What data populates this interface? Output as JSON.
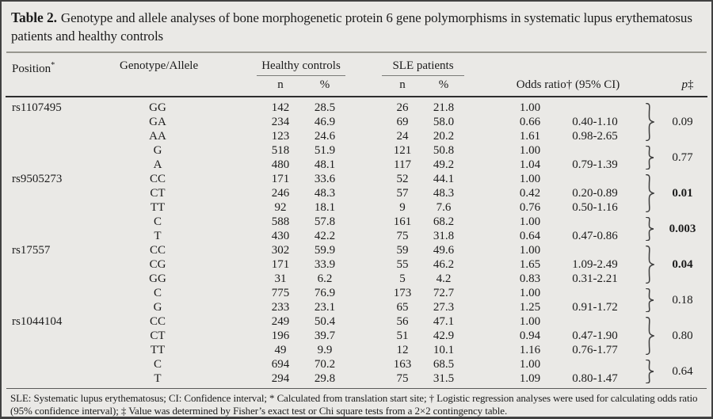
{
  "colors": {
    "background": "#eae9e6",
    "border": "#414141",
    "text": "#1b1b1b",
    "title_rule": "#98978f",
    "header_rule": "#2e2e2e"
  },
  "title": {
    "label": "Table 2.",
    "text": "Genotype and allele analyses of bone morphogenetic protein 6 gene polymorphisms in systematic lupus erythematosus patients and healthy controls"
  },
  "header": {
    "position": "Position",
    "position_sup": "*",
    "genotype_allele": "Genotype/Allele",
    "healthy_controls": "Healthy controls",
    "sle_patients": "SLE patients",
    "n": "n",
    "pct": "%",
    "odds_ratio": "Odds ratio† (95% CI)",
    "p": "p",
    "p_sup": "‡"
  },
  "table": {
    "groups": [
      {
        "position": "rs1107495",
        "rows": [
          {
            "ga": "GG",
            "hc_n": "142",
            "hc_pct": "28.5",
            "sle_n": "26",
            "sle_pct": "21.8",
            "or": "1.00",
            "ci": ""
          },
          {
            "ga": "GA",
            "hc_n": "234",
            "hc_pct": "46.9",
            "sle_n": "69",
            "sle_pct": "58.0",
            "or": "0.66",
            "ci": "0.40-1.10"
          },
          {
            "ga": "AA",
            "hc_n": "123",
            "hc_pct": "24.6",
            "sle_n": "24",
            "sle_pct": "20.2",
            "or": "1.61",
            "ci": "0.98-2.65"
          },
          {
            "ga": "G",
            "hc_n": "518",
            "hc_pct": "51.9",
            "sle_n": "121",
            "sle_pct": "50.8",
            "or": "1.00",
            "ci": ""
          },
          {
            "ga": "A",
            "hc_n": "480",
            "hc_pct": "48.1",
            "sle_n": "117",
            "sle_pct": "49.2",
            "or": "1.04",
            "ci": "0.79-1.39"
          }
        ],
        "p_blocks": [
          {
            "span": 3,
            "p": "0.09",
            "bold": false
          },
          {
            "span": 2,
            "p": "0.77",
            "bold": false
          }
        ]
      },
      {
        "position": "rs9505273",
        "rows": [
          {
            "ga": "CC",
            "hc_n": "171",
            "hc_pct": "33.6",
            "sle_n": "52",
            "sle_pct": "44.1",
            "or": "1.00",
            "ci": ""
          },
          {
            "ga": "CT",
            "hc_n": "246",
            "hc_pct": "48.3",
            "sle_n": "57",
            "sle_pct": "48.3",
            "or": "0.42",
            "ci": "0.20-0.89"
          },
          {
            "ga": "TT",
            "hc_n": "92",
            "hc_pct": "18.1",
            "sle_n": "9",
            "sle_pct": "7.6",
            "or": "0.76",
            "ci": "0.50-1.16"
          },
          {
            "ga": "C",
            "hc_n": "588",
            "hc_pct": "57.8",
            "sle_n": "161",
            "sle_pct": "68.2",
            "or": "1.00",
            "ci": ""
          },
          {
            "ga": "T",
            "hc_n": "430",
            "hc_pct": "42.2",
            "sle_n": "75",
            "sle_pct": "31.8",
            "or": "0.64",
            "ci": "0.47-0.86"
          }
        ],
        "p_blocks": [
          {
            "span": 3,
            "p": "0.01",
            "bold": true
          },
          {
            "span": 2,
            "p": "0.003",
            "bold": true
          }
        ]
      },
      {
        "position": "rs17557",
        "rows": [
          {
            "ga": "CC",
            "hc_n": "302",
            "hc_pct": "59.9",
            "sle_n": "59",
            "sle_pct": "49.6",
            "or": "1.00",
            "ci": ""
          },
          {
            "ga": "CG",
            "hc_n": "171",
            "hc_pct": "33.9",
            "sle_n": "55",
            "sle_pct": "46.2",
            "or": "1.65",
            "ci": "1.09-2.49"
          },
          {
            "ga": "GG",
            "hc_n": "31",
            "hc_pct": "6.2",
            "sle_n": "5",
            "sle_pct": "4.2",
            "or": "0.83",
            "ci": "0.31-2.21"
          },
          {
            "ga": "C",
            "hc_n": "775",
            "hc_pct": "76.9",
            "sle_n": "173",
            "sle_pct": "72.7",
            "or": "1.00",
            "ci": ""
          },
          {
            "ga": "G",
            "hc_n": "233",
            "hc_pct": "23.1",
            "sle_n": "65",
            "sle_pct": "27.3",
            "or": "1.25",
            "ci": "0.91-1.72"
          }
        ],
        "p_blocks": [
          {
            "span": 3,
            "p": "0.04",
            "bold": true
          },
          {
            "span": 2,
            "p": "0.18",
            "bold": false
          }
        ]
      },
      {
        "position": "rs1044104",
        "rows": [
          {
            "ga": "CC",
            "hc_n": "249",
            "hc_pct": "50.4",
            "sle_n": "56",
            "sle_pct": "47.1",
            "or": "1.00",
            "ci": ""
          },
          {
            "ga": "CT",
            "hc_n": "196",
            "hc_pct": "39.7",
            "sle_n": "51",
            "sle_pct": "42.9",
            "or": "0.94",
            "ci": "0.47-1.90"
          },
          {
            "ga": "TT",
            "hc_n": "49",
            "hc_pct": "9.9",
            "sle_n": "12",
            "sle_pct": "10.1",
            "or": "1.16",
            "ci": "0.76-1.77"
          },
          {
            "ga": "C",
            "hc_n": "694",
            "hc_pct": "70.2",
            "sle_n": "163",
            "sle_pct": "68.5",
            "or": "1.00",
            "ci": ""
          },
          {
            "ga": "T",
            "hc_n": "294",
            "hc_pct": "29.8",
            "sle_n": "75",
            "sle_pct": "31.5",
            "or": "1.09",
            "ci": "0.80-1.47"
          }
        ],
        "p_blocks": [
          {
            "span": 3,
            "p": "0.80",
            "bold": false
          },
          {
            "span": 2,
            "p": "0.64",
            "bold": false
          }
        ]
      }
    ]
  },
  "footnote": "SLE: Systematic lupus erythematosus; CI: Confidence interval; * Calculated from translation start site; † Logistic regression analyses were used for calculating odds ratio (95% confidence interval); ‡ Value was determined by Fisher’s exact test or Chi square tests from a 2×2 contingency table."
}
